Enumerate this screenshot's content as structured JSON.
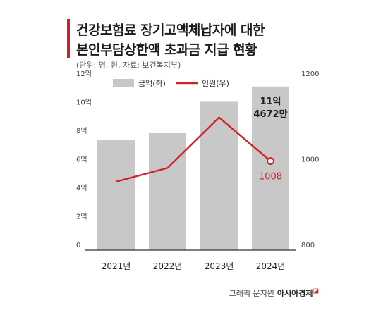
{
  "title_lines": [
    "건강보험료 장기고액체납자에 대한",
    "본인부담상한액 초과금 지급 현황"
  ],
  "subtitle": "(단위: 명, 원, 자료: 보건복지부)",
  "credit": {
    "text": "그래픽 문지원",
    "brand": "아시아경제"
  },
  "colors": {
    "accent": "#d3212c",
    "bar": "#c8c8c8",
    "line": "#d3212c",
    "axis": "#333333"
  },
  "chart_data": {
    "type": "bar",
    "categories": [
      "2021년",
      "2022년",
      "2023년",
      "2024년"
    ],
    "series": [
      {
        "name": "금액(좌)",
        "type": "bar",
        "axis": "left",
        "values": [
          7.7,
          8.2,
          10.4,
          11.4672
        ]
      },
      {
        "name": "인원(우)",
        "type": "line",
        "axis": "right",
        "values": [
          960,
          992,
          1110,
          1008
        ]
      }
    ],
    "left_axis": {
      "ylim": [
        0,
        12
      ],
      "ticks": [
        0,
        2,
        4,
        6,
        8,
        10,
        12
      ],
      "tick_labels": [
        "0",
        "2억",
        "4억",
        "6억",
        "8억",
        "10억",
        "12억"
      ]
    },
    "right_axis": {
      "ylim": [
        800,
        1200
      ],
      "ticks": [
        800,
        1000,
        1200
      ],
      "tick_labels": [
        "800",
        "1000",
        "1200"
      ]
    },
    "annotations": {
      "bar_2024": [
        "11억",
        "4672만"
      ],
      "line_2024": "1008"
    },
    "legend_position": "top"
  }
}
